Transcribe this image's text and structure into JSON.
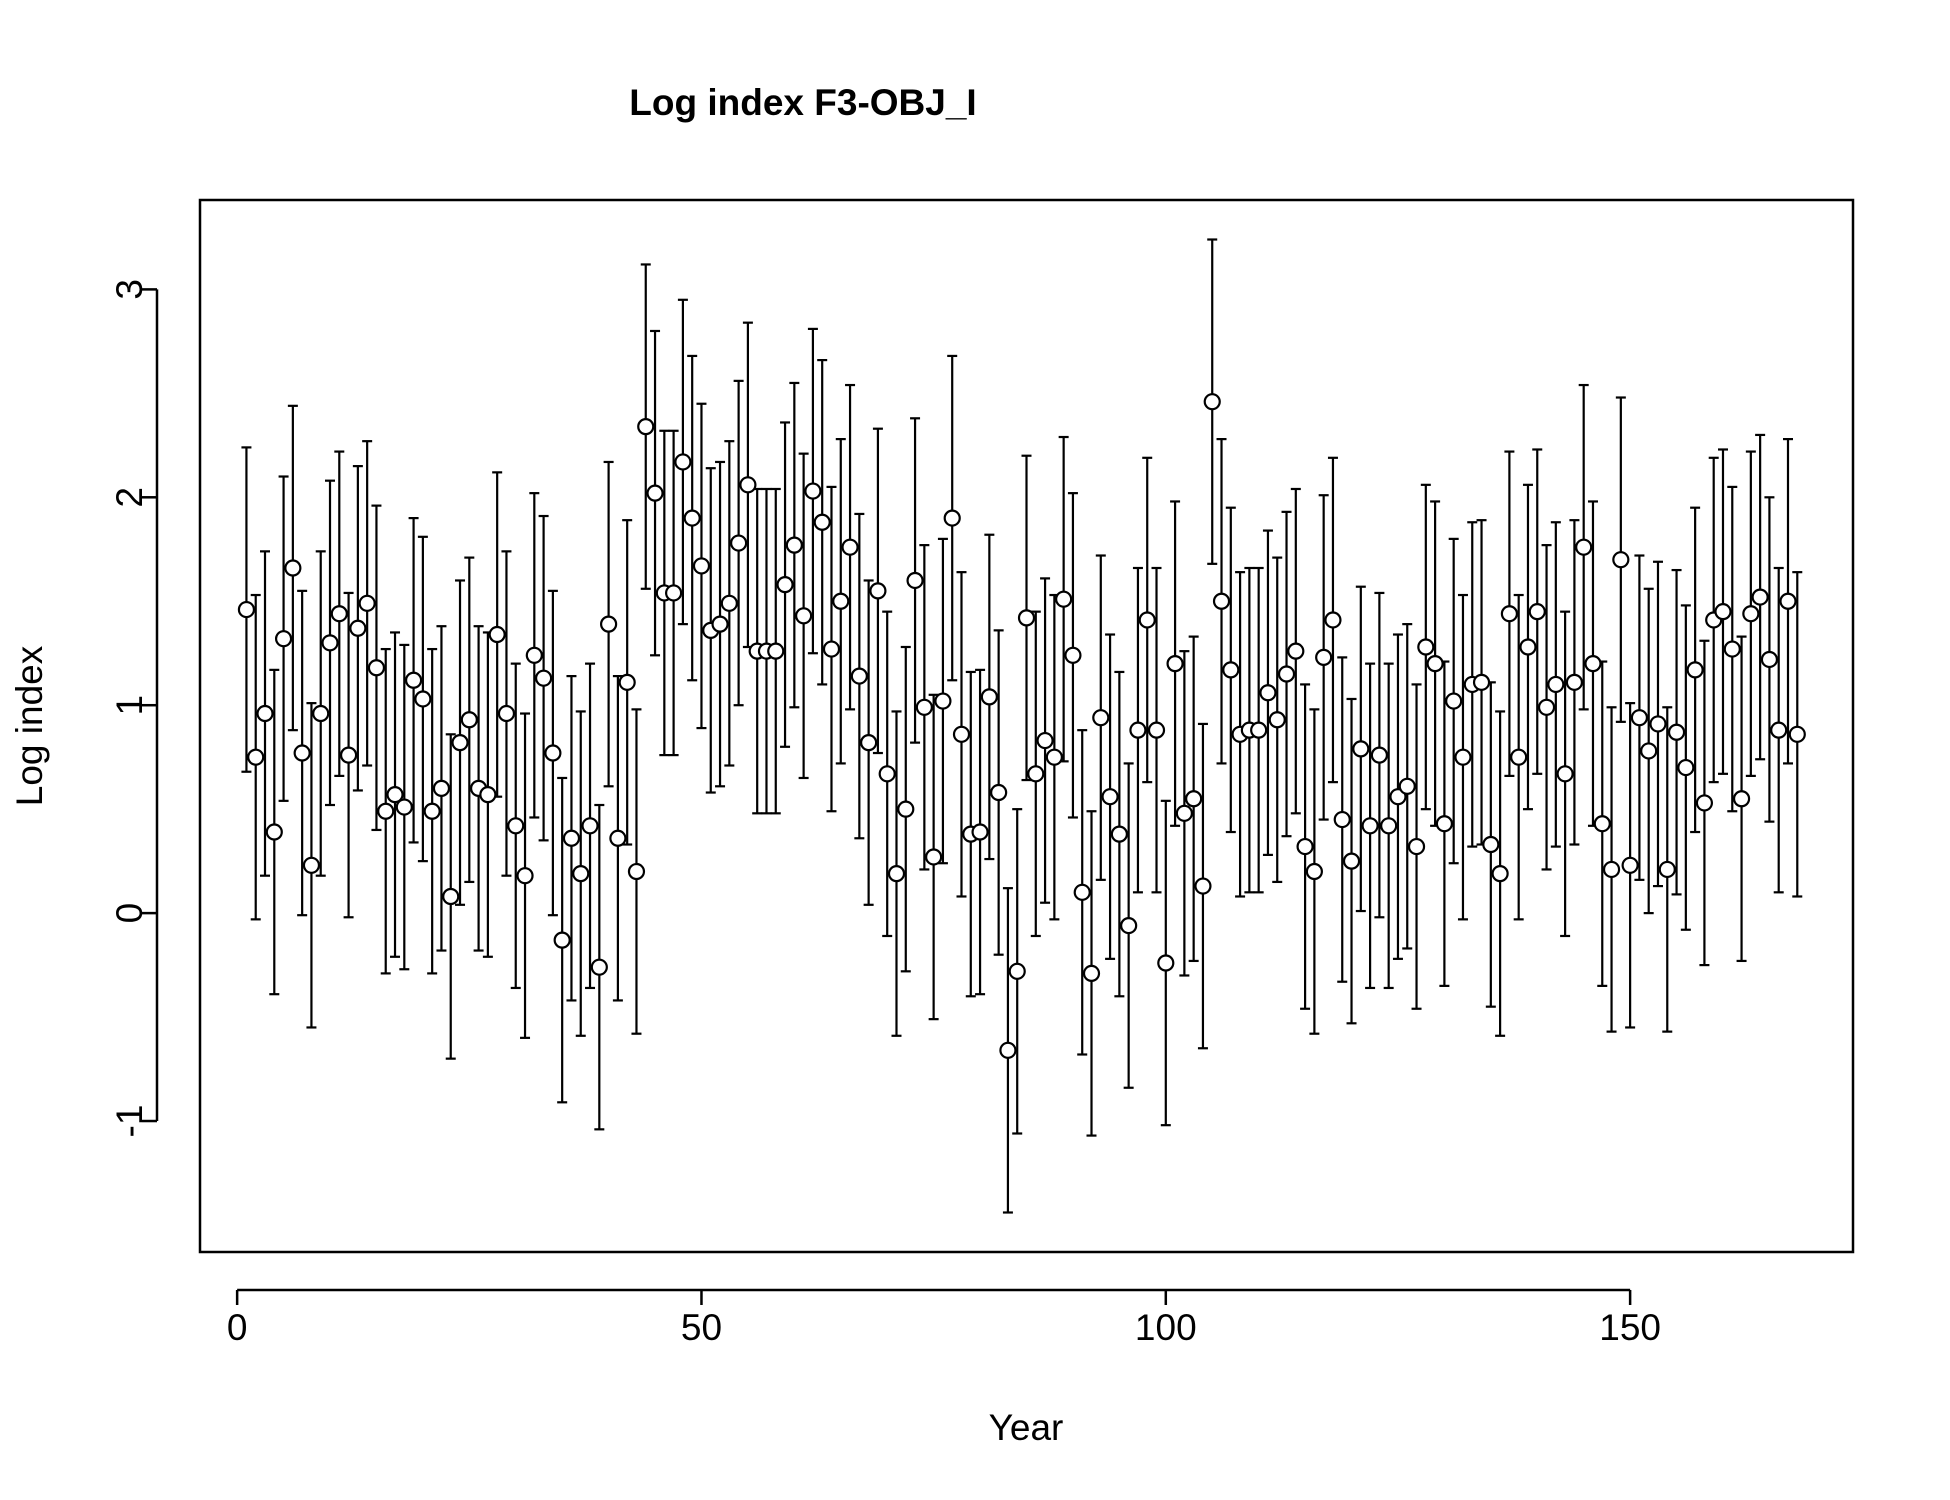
{
  "chart_data": {
    "type": "scatter",
    "title": "Log index F3-OBJ_I",
    "xlabel": "Year",
    "ylabel": "Log index",
    "xlim": [
      -4,
      174
    ],
    "ylim": [
      -1.63,
      3.43
    ],
    "xticks": [
      0,
      50,
      100,
      150
    ],
    "xtick_labels": [
      "0",
      "50",
      "100",
      "150"
    ],
    "yticks": [
      -1,
      0,
      1,
      2,
      3
    ],
    "ytick_labels": [
      "-1",
      "0",
      "1",
      "2",
      "3"
    ],
    "grid": false,
    "legend": "none",
    "marker": "open-circle",
    "error_half_width": 0.78,
    "x": [
      1,
      2,
      3,
      4,
      5,
      6,
      7,
      8,
      9,
      10,
      11,
      12,
      13,
      14,
      15,
      16,
      17,
      18,
      19,
      20,
      21,
      22,
      23,
      24,
      25,
      26,
      27,
      28,
      29,
      30,
      31,
      32,
      33,
      34,
      35,
      36,
      37,
      38,
      39,
      40,
      41,
      42,
      43,
      44,
      45,
      46,
      47,
      48,
      49,
      50,
      51,
      52,
      53,
      54,
      55,
      56,
      57,
      58,
      59,
      60,
      61,
      62,
      63,
      64,
      65,
      66,
      67,
      68,
      69,
      70,
      71,
      72,
      73,
      74,
      75,
      76,
      77,
      78,
      79,
      80,
      81,
      82,
      83,
      84,
      85,
      86,
      87,
      88,
      89,
      90,
      91,
      92,
      93,
      94,
      95,
      96,
      97,
      98,
      99,
      100,
      101,
      102,
      103,
      104,
      105,
      106,
      107,
      108,
      109,
      110,
      111,
      112,
      113,
      114,
      115,
      116,
      117,
      118,
      119,
      120,
      121,
      122,
      123,
      124,
      125,
      126,
      127,
      128,
      129,
      130,
      131,
      132,
      133,
      134,
      135,
      136,
      137,
      138,
      139,
      140,
      141,
      142,
      143,
      144,
      145,
      146,
      147,
      148,
      149,
      150,
      151,
      152,
      153,
      154,
      155,
      156,
      157,
      158,
      159,
      160,
      161,
      162,
      163,
      164,
      165,
      166,
      167,
      168
    ],
    "y": [
      1.46,
      0.75,
      0.96,
      0.39,
      1.32,
      1.66,
      0.77,
      0.23,
      0.96,
      1.3,
      1.44,
      0.76,
      1.37,
      1.49,
      1.18,
      0.49,
      0.57,
      0.51,
      1.12,
      1.03,
      0.49,
      0.6,
      0.08,
      0.82,
      0.93,
      0.6,
      0.57,
      1.34,
      0.96,
      0.42,
      0.18,
      1.24,
      1.13,
      0.77,
      -0.13,
      0.36,
      0.19,
      0.42,
      -0.26,
      1.39,
      0.36,
      1.11,
      0.2,
      2.34,
      2.02,
      1.54,
      1.54,
      2.17,
      1.9,
      1.67,
      1.36,
      1.39,
      1.49,
      1.78,
      2.06,
      1.26,
      1.26,
      1.26,
      1.58,
      1.77,
      1.43,
      2.03,
      1.88,
      1.27,
      1.5,
      1.76,
      1.14,
      0.82,
      1.55,
      0.67,
      0.19,
      0.5,
      1.6,
      0.99,
      0.27,
      1.02,
      1.9,
      0.86,
      0.38,
      0.39,
      1.04,
      0.58,
      -0.66,
      -0.28,
      1.42,
      0.67,
      0.83,
      0.75,
      1.51,
      1.24,
      0.1,
      -0.29,
      0.94,
      0.56,
      0.38,
      -0.06,
      0.88,
      1.41,
      0.88,
      -0.24,
      1.2,
      0.48,
      0.55,
      0.13,
      2.46,
      1.5,
      1.17,
      0.86,
      0.88,
      0.88,
      1.06,
      0.93,
      1.15,
      1.26,
      0.32,
      0.2,
      1.23,
      1.41,
      0.45,
      0.25,
      0.79,
      0.42,
      0.76,
      0.42,
      0.56,
      0.61,
      0.32,
      1.28,
      1.2,
      0.43,
      1.02,
      0.75,
      1.1,
      1.11,
      0.33,
      0.19,
      1.44,
      0.75,
      1.28,
      1.45,
      0.99,
      1.1,
      0.67,
      1.11,
      1.76,
      1.2,
      0.43,
      0.21,
      1.7,
      0.23,
      0.94,
      0.78,
      0.91,
      0.21,
      0.87,
      0.7,
      1.17,
      0.53,
      1.41,
      1.45,
      1.27,
      0.55,
      1.44,
      1.52,
      1.22,
      0.88,
      1.5,
      0.86
    ]
  }
}
